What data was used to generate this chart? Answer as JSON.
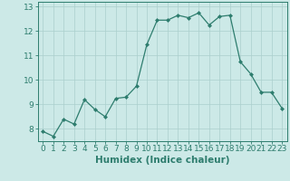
{
  "x": [
    0,
    1,
    2,
    3,
    4,
    5,
    6,
    7,
    8,
    9,
    10,
    11,
    12,
    13,
    14,
    15,
    16,
    17,
    18,
    19,
    20,
    21,
    22,
    23
  ],
  "y": [
    7.9,
    7.7,
    8.4,
    8.2,
    9.2,
    8.8,
    8.5,
    9.25,
    9.3,
    9.75,
    11.45,
    12.45,
    12.45,
    12.65,
    12.55,
    12.75,
    12.25,
    12.6,
    12.65,
    10.75,
    10.25,
    9.5,
    9.5,
    8.85
  ],
  "line_color": "#2e7d6e",
  "marker": "D",
  "marker_size": 2,
  "bg_color": "#cce9e7",
  "grid_color": "#aacfcc",
  "xlabel": "Humidex (Indice chaleur)",
  "ylim": [
    7.5,
    13.2
  ],
  "xlim": [
    -0.5,
    23.5
  ],
  "yticks": [
    8,
    9,
    10,
    11,
    12,
    13
  ],
  "xticks": [
    0,
    1,
    2,
    3,
    4,
    5,
    6,
    7,
    8,
    9,
    10,
    11,
    12,
    13,
    14,
    15,
    16,
    17,
    18,
    19,
    20,
    21,
    22,
    23
  ],
  "tick_label_fontsize": 6.5,
  "xlabel_fontsize": 7.5
}
